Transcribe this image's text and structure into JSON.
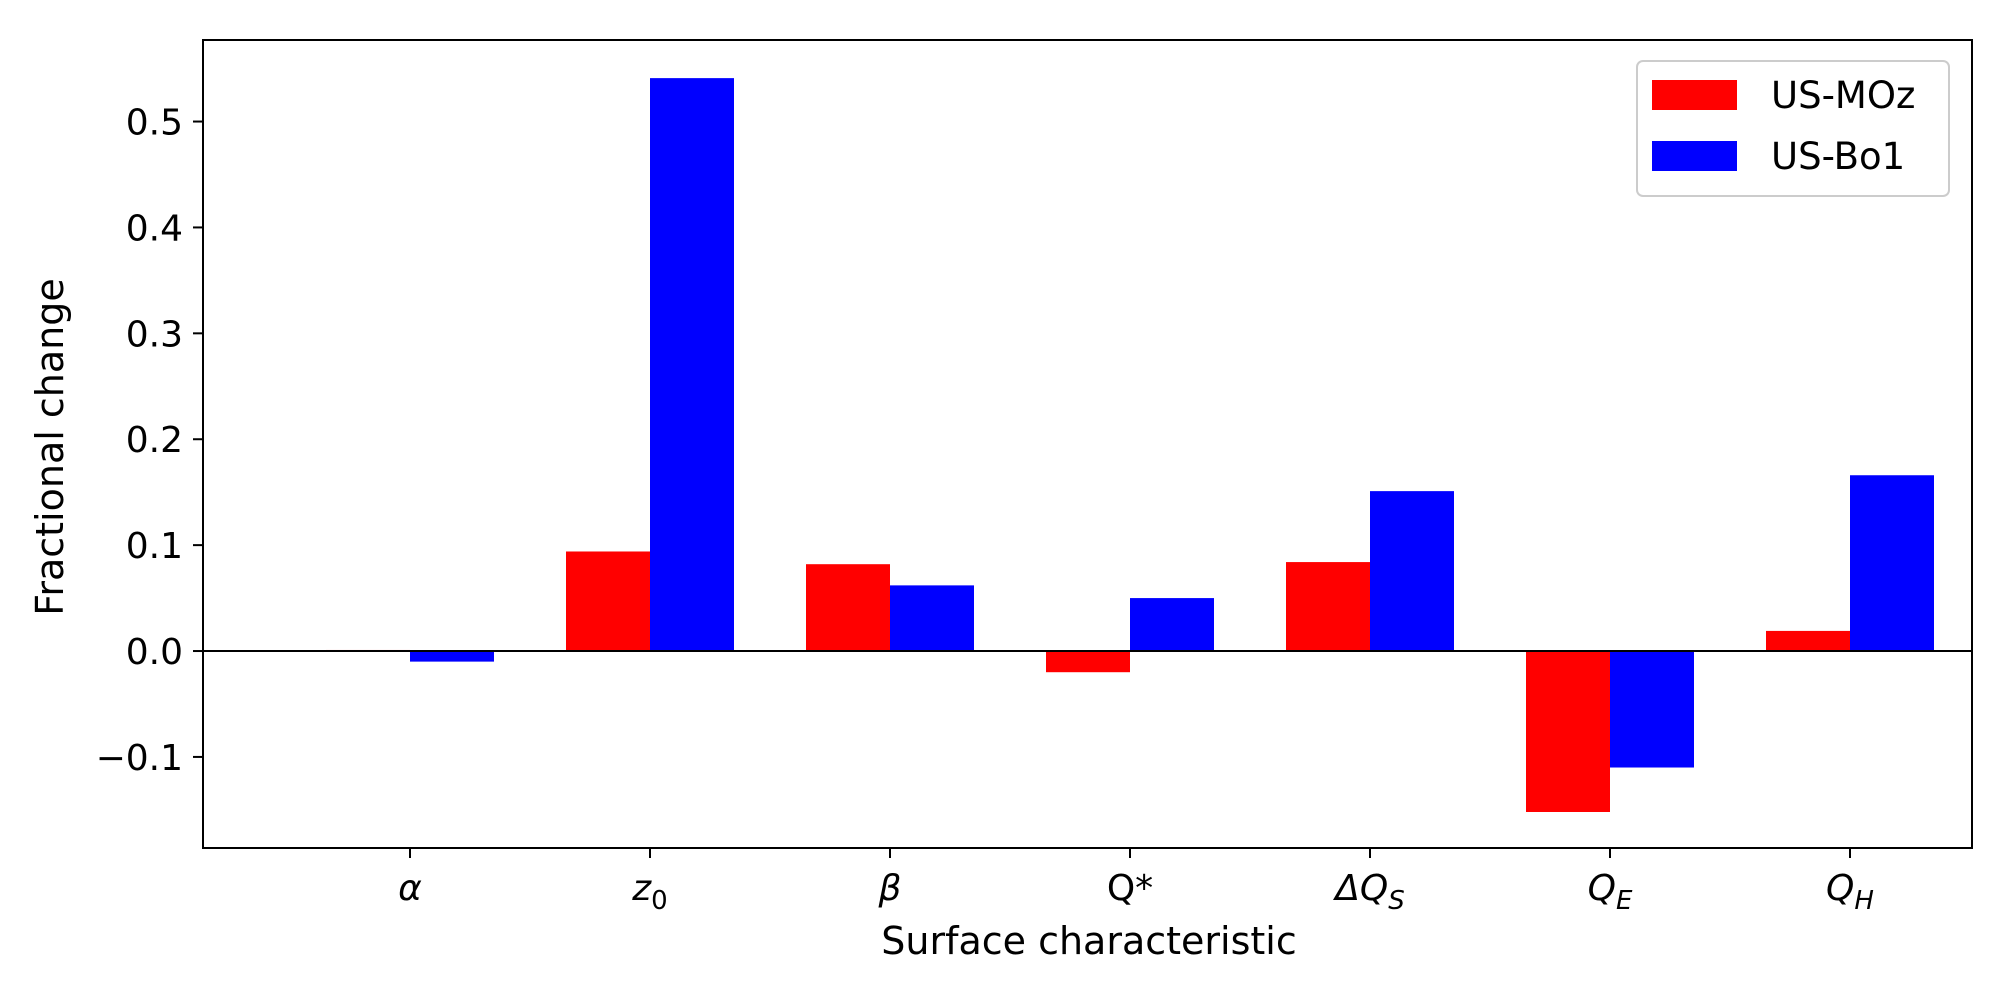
{
  "chart_data": {
    "type": "bar",
    "categories": [
      "α",
      "z0",
      "β",
      "Q*",
      "ΔQS",
      "QE",
      "QH"
    ],
    "category_labels": [
      {
        "base": "α",
        "sub": "",
        "italic": true
      },
      {
        "base": "z",
        "sub": "0",
        "italic": true
      },
      {
        "base": "β",
        "sub": "",
        "italic": true
      },
      {
        "base": "Q*",
        "sub": "",
        "italic": false
      },
      {
        "base": "ΔQ",
        "sub": "S",
        "italic": true
      },
      {
        "base": "Q",
        "sub": "E",
        "italic": true
      },
      {
        "base": "Q",
        "sub": "H",
        "italic": true
      }
    ],
    "series": [
      {
        "name": "US-MOz",
        "color": "#ff0000",
        "values": [
          0.001,
          0.094,
          0.082,
          -0.02,
          0.084,
          -0.152,
          0.019
        ]
      },
      {
        "name": "US-Bo1",
        "color": "#0000ff",
        "values": [
          -0.01,
          0.541,
          0.062,
          0.05,
          0.151,
          -0.11,
          0.166
        ]
      }
    ],
    "xlabel": "Surface characteristic",
    "ylabel": "Fractional change",
    "ylim": [
      -0.186,
      0.577
    ],
    "yticks": [
      -0.1,
      0.0,
      0.1,
      0.2,
      0.3,
      0.4,
      0.5
    ],
    "ytick_labels": [
      "−0.1",
      "0.0",
      "0.1",
      "0.2",
      "0.3",
      "0.4",
      "0.5"
    ],
    "legend_position": "top-right",
    "grid": false
  }
}
